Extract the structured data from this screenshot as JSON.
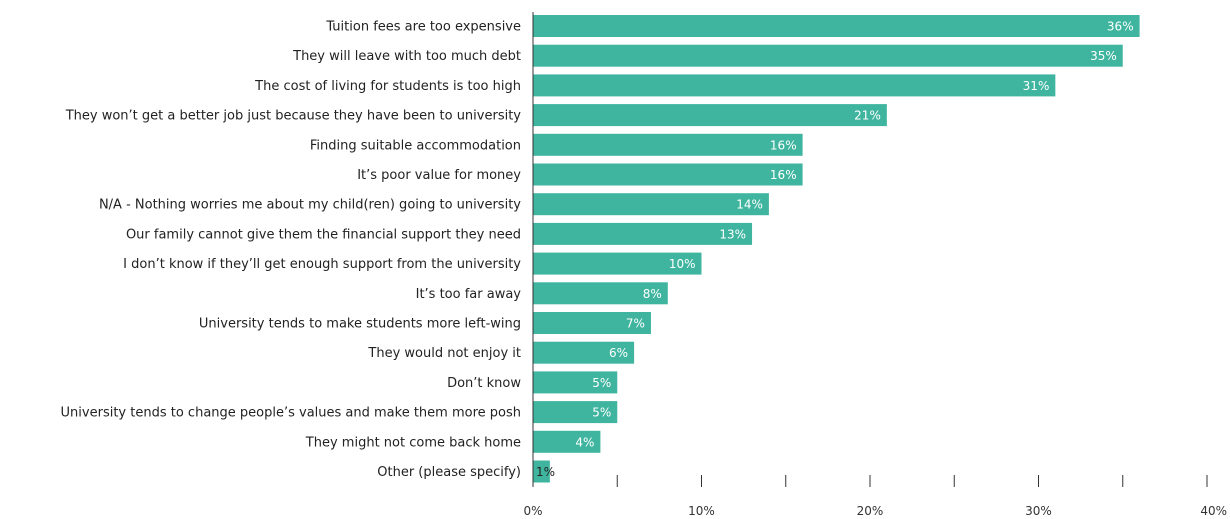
{
  "chart_data": {
    "type": "bar",
    "orientation": "horizontal",
    "title": "",
    "xlabel": "",
    "ylabel": "",
    "categories": [
      "Tuition fees are too expensive",
      "They will leave with too much debt",
      "The cost of living for students is too high",
      "They won’t get a better job just because they have been to university",
      "Finding suitable accommodation",
      "It’s poor value for money",
      "N/A - Nothing worries me about my child(ren) going to university",
      "Our family cannot give them the financial support they need",
      "I don’t know if they’ll get enough support from the university",
      "It’s too far away",
      "University tends to make students more left-wing",
      "They would not enjoy it",
      "Don’t know",
      "University tends to change people’s values and make them more posh",
      "They might not come back home",
      "Other (please specify)"
    ],
    "values": [
      36,
      35,
      31,
      21,
      16,
      16,
      14,
      13,
      10,
      8,
      7,
      6,
      5,
      5,
      4,
      1
    ],
    "value_labels": [
      "36%",
      "35%",
      "31%",
      "21%",
      "16%",
      "16%",
      "14%",
      "13%",
      "10%",
      "8%",
      "7%",
      "6%",
      "5%",
      "5%",
      "4%",
      "1%"
    ],
    "xlim": [
      0,
      40
    ],
    "x_ticks": [
      0,
      10,
      20,
      30,
      40
    ],
    "x_tick_labels": [
      "0%",
      "10%",
      "20%",
      "30%",
      "40%"
    ],
    "grid": false,
    "legend": "none",
    "colors": {
      "bar": "#3fb59f",
      "bar_label": "#ffffff",
      "bar_label_outside": "#222222",
      "axis": "#333333"
    }
  }
}
